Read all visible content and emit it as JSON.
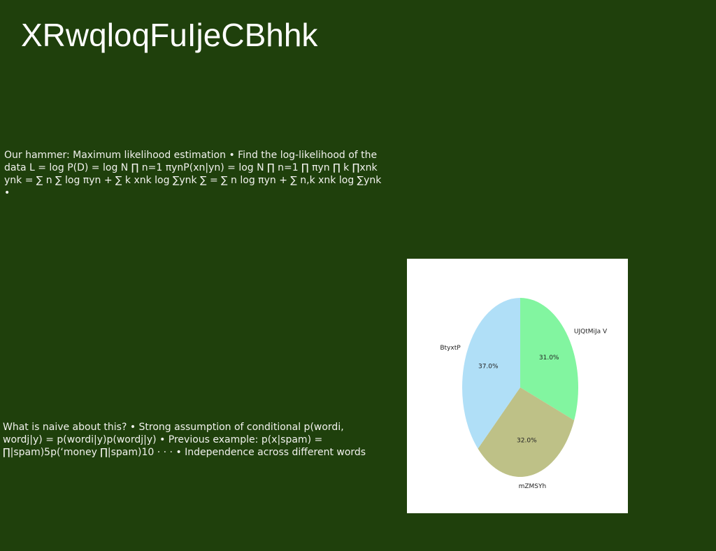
{
  "slide": {
    "title": "XRwqloqFuIjeCBhhk",
    "paragraphs": [
      "Our hammer: Maximum likelihood estimation • Find the log-likelihood of the data L = log P(D) = log N ∏ n=1 πynP(xn|yn) = log N ∏ n=1 ∏ πyn ∏ k ∏xnk ynk = ∑ n ∑ log πyn + ∑ k xnk log ∑ynk ∑ = ∑ n log πyn + ∑ n,k xnk log ∑ynk •",
      "What is naive about this? • Strong assumption of conditional p(wordi, wordj|y) = p(wordi|y)p(wordj|y) • Previous example: p(x|spam) = ∏|spam)5p(‘money ∏|spam)10 · · · • Independence across different words"
    ]
  },
  "chart_data": {
    "type": "pie",
    "labels": [
      "UJQtMiJa V",
      "mZMSYh",
      "BtyxtP"
    ],
    "values": [
      31.0,
      32.0,
      37.0
    ],
    "value_labels": [
      "31.0%",
      "32.0%",
      "37.0%"
    ],
    "colors": [
      "#82f5a0",
      "#bec187",
      "#b0dff7"
    ],
    "start_angle_deg": 90,
    "direction": "clockwise",
    "legend": "none",
    "title": ""
  }
}
